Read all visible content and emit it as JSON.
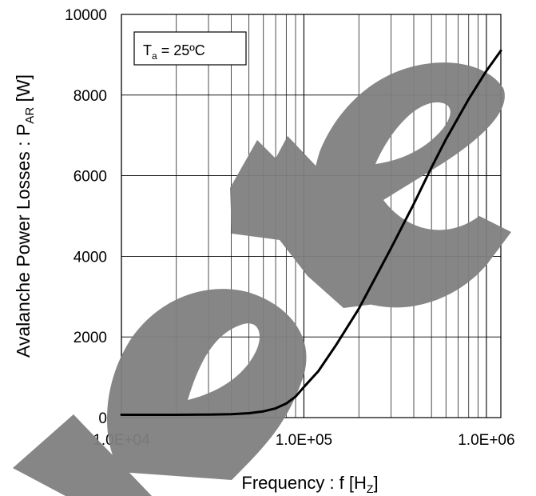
{
  "chart_data": {
    "type": "line",
    "xlabel": "Frequency : f [H",
    "xlabel_sub": "Z",
    "xlabel_end": "]",
    "ylabel": "Avalanche Power Losses : P",
    "ylabel_sub": "AR",
    "ylabel_end": " [W]",
    "x_scale": "log",
    "xlim": [
      10000,
      1200000
    ],
    "ylim": [
      0,
      10000
    ],
    "grid": true,
    "x_ticks": [
      10000,
      100000,
      1000000
    ],
    "x_tick_labels": [
      "1.0E+04",
      "1.0E+05",
      "1.0E+06"
    ],
    "y_ticks": [
      0,
      2000,
      4000,
      6000,
      8000,
      10000
    ],
    "y_tick_labels": [
      "0",
      "2000",
      "4000",
      "6000",
      "8000",
      "10000"
    ],
    "annotation": {
      "prefix": "T",
      "sub": "a",
      "suffix": " = 25ºC"
    },
    "series": [
      {
        "x": [
          10000,
          20000,
          30000,
          40000,
          50000,
          60000,
          70000,
          80000,
          90000,
          100000,
          120000,
          150000,
          200000,
          300000,
          400000,
          500000,
          600000,
          800000,
          1000000,
          1200000
        ],
        "y": [
          70,
          70,
          75,
          85,
          110,
          155,
          230,
          350,
          520,
          760,
          1150,
          1800,
          2700,
          4200,
          5300,
          6200,
          6900,
          7900,
          8600,
          9100
        ]
      }
    ]
  },
  "watermark": {
    "text": "Delete",
    "color": "#808080"
  }
}
